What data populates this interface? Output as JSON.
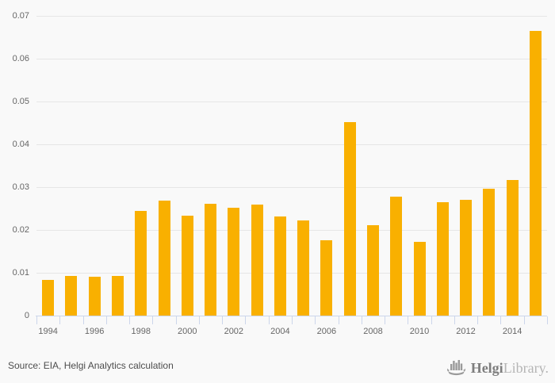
{
  "chart_data": {
    "type": "bar",
    "title": "",
    "xlabel": "",
    "ylabel": "",
    "categories": [
      1994,
      1995,
      1996,
      1997,
      1998,
      1999,
      2000,
      2001,
      2002,
      2003,
      2004,
      2005,
      2006,
      2007,
      2008,
      2009,
      2010,
      2011,
      2012,
      2013,
      2014,
      2015
    ],
    "values": [
      0.0084,
      0.0092,
      0.009,
      0.0092,
      0.0244,
      0.0268,
      0.0234,
      0.0261,
      0.0252,
      0.0259,
      0.0232,
      0.0223,
      0.0176,
      0.0452,
      0.0212,
      0.0277,
      0.0173,
      0.0264,
      0.027,
      0.0296,
      0.0317,
      0.0665
    ],
    "ylim": [
      0,
      0.07
    ],
    "ytick_step": 0.01,
    "ytick_labels": [
      "0",
      "0.01",
      "0.02",
      "0.03",
      "0.04",
      "0.05",
      "0.06",
      "0.07"
    ],
    "xtick_labels_shown": [
      "1994",
      "1996",
      "1998",
      "2000",
      "2002",
      "2004",
      "2006",
      "2008",
      "2010",
      "2012",
      "2014"
    ],
    "x_label_every": 2,
    "grid": true,
    "legend": "none"
  },
  "colors": {
    "bar": "#f9b000",
    "background": "#f9f9f9",
    "gridline": "#e6e6e6",
    "axis": "#ccd6eb",
    "tick_label": "#666666",
    "source_text": "#4d4d4d",
    "logo_dark": "#7e7e7e",
    "logo_light": "#b5b5b5"
  },
  "footer": {
    "source": "Source: EIA, Helgi Analytics calculation",
    "logo": {
      "brand_bold": "Helgi",
      "brand_light": "Library."
    }
  }
}
